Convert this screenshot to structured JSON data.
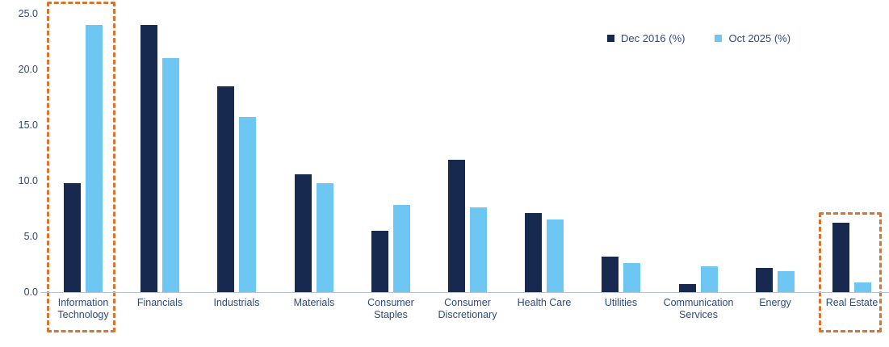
{
  "chart_data": {
    "type": "bar",
    "title": "",
    "categories": [
      "Information Technology",
      "Financials",
      "Industrials",
      "Materials",
      "Consumer Staples",
      "Consumer Discretionary",
      "Health Care",
      "Utilities",
      "Communication Services",
      "Energy",
      "Real Estate"
    ],
    "series": [
      {
        "name": "Dec 2016 (%)",
        "color": "#17294E",
        "values": [
          9.8,
          24.0,
          18.5,
          10.6,
          5.5,
          11.9,
          7.1,
          3.2,
          0.7,
          2.2,
          6.2
        ]
      },
      {
        "name": "Oct 2025 (%)",
        "color": "#6EC7F3",
        "values": [
          24.0,
          21.0,
          15.7,
          9.8,
          7.8,
          7.6,
          6.5,
          2.6,
          2.3,
          1.9,
          0.9
        ]
      }
    ],
    "ylim": [
      0,
      25
    ],
    "ytick_step": 5,
    "ytick_labels": [
      "0.0",
      "5.0",
      "10.0",
      "15.0",
      "20.0",
      "25.0"
    ],
    "grid": false,
    "legend_position": "top-right",
    "highlighted_categories": [
      "Information Technology",
      "Real Estate"
    ],
    "highlight_color": "#D9742E",
    "axis_line_color": "#B6C2D8",
    "text_color": "#2E4A7C"
  }
}
